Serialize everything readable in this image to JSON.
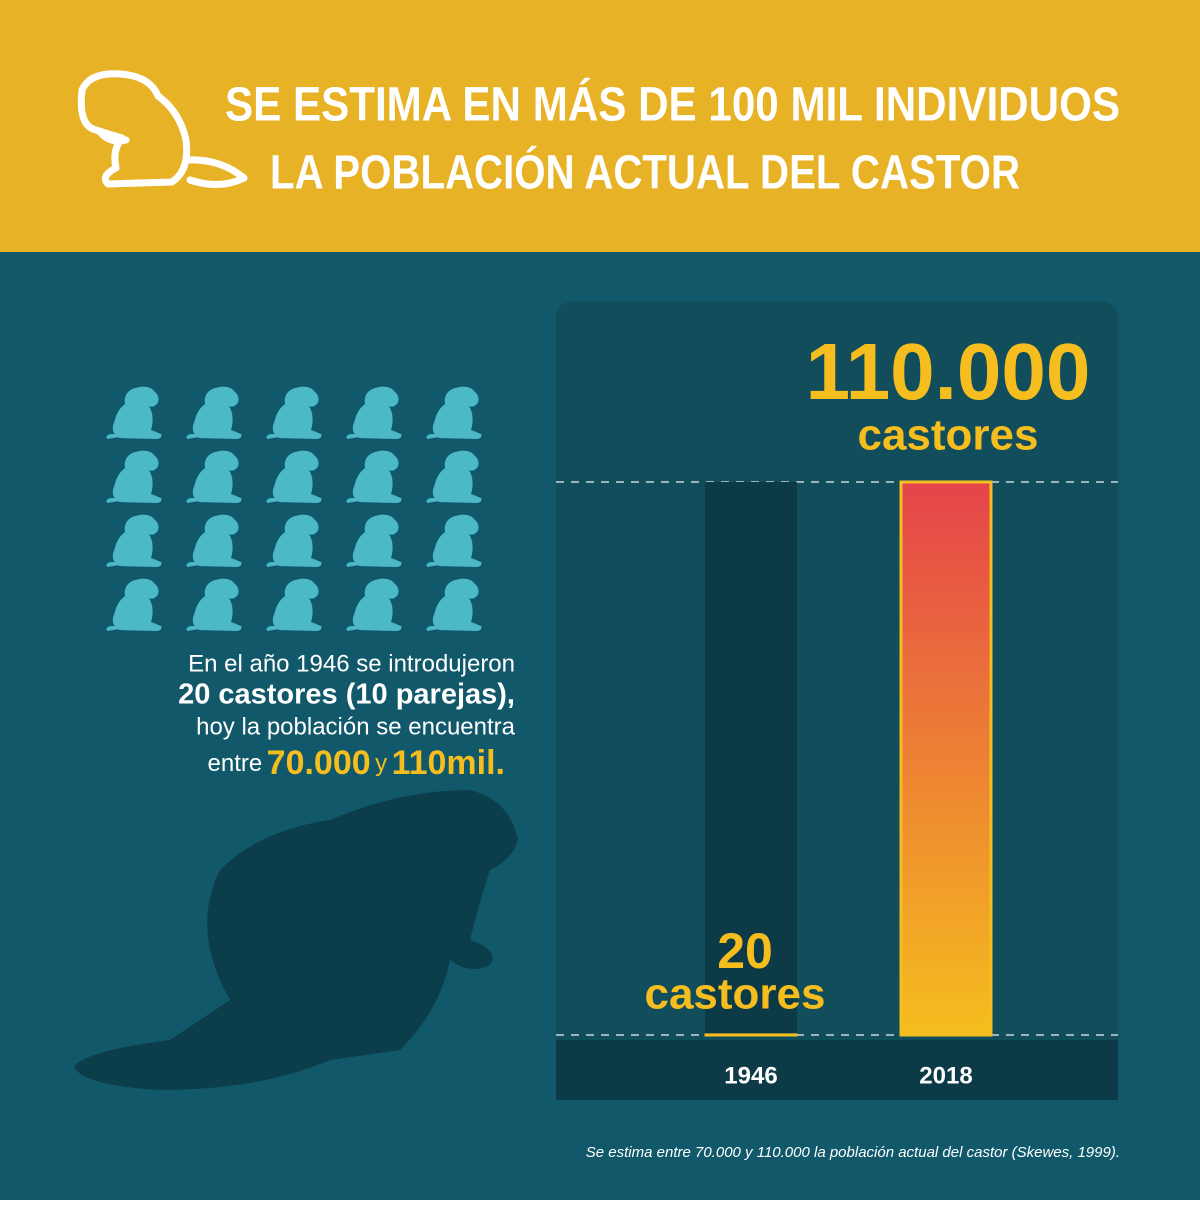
{
  "header": {
    "title": [
      "SE ESTIMA EN MÁS DE 100 MIL INDIVIDUOS",
      "LA POBLACIÓN ACTUAL DEL CASTOR"
    ]
  },
  "description": {
    "line1": "En el año 1946 se introdujeron",
    "line2": "20 castores (10 parejas),",
    "line3": "hoy la población se encuentra",
    "line4_prefix": "entre",
    "line4_low": "70.000",
    "line4_mid": "y",
    "line4_high": "110mil."
  },
  "footnote": "Se estima entre 70.000 y 110.000 la población actual del castor (Skewes, 1999).",
  "chart_data": {
    "type": "bar",
    "categories": [
      "1946",
      "2018"
    ],
    "values": [
      20,
      110000
    ],
    "value_labels": [
      "20",
      "110.000"
    ],
    "value_unit_label": "castores",
    "colors": [
      "#f5be1e",
      "#f5be1e"
    ],
    "gradient_top": "#e5444a",
    "ylim": [
      0,
      110000
    ]
  }
}
